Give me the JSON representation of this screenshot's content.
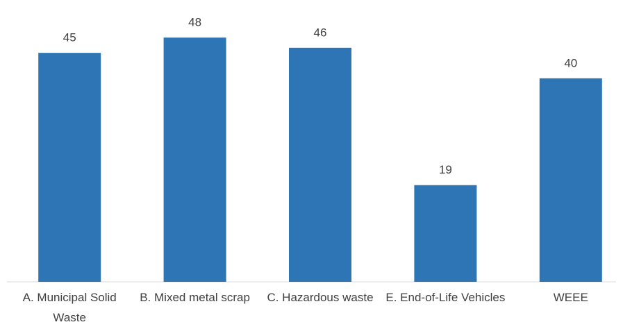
{
  "chart_data": {
    "type": "bar",
    "categories": [
      "A. Municipal Solid Waste",
      "B. Mixed metal scrap",
      "C. Hazardous waste",
      "E. End-of-Life Vehicles",
      "WEEE"
    ],
    "values": [
      45,
      48,
      46,
      19,
      40
    ],
    "color": "#2e75b6"
  }
}
